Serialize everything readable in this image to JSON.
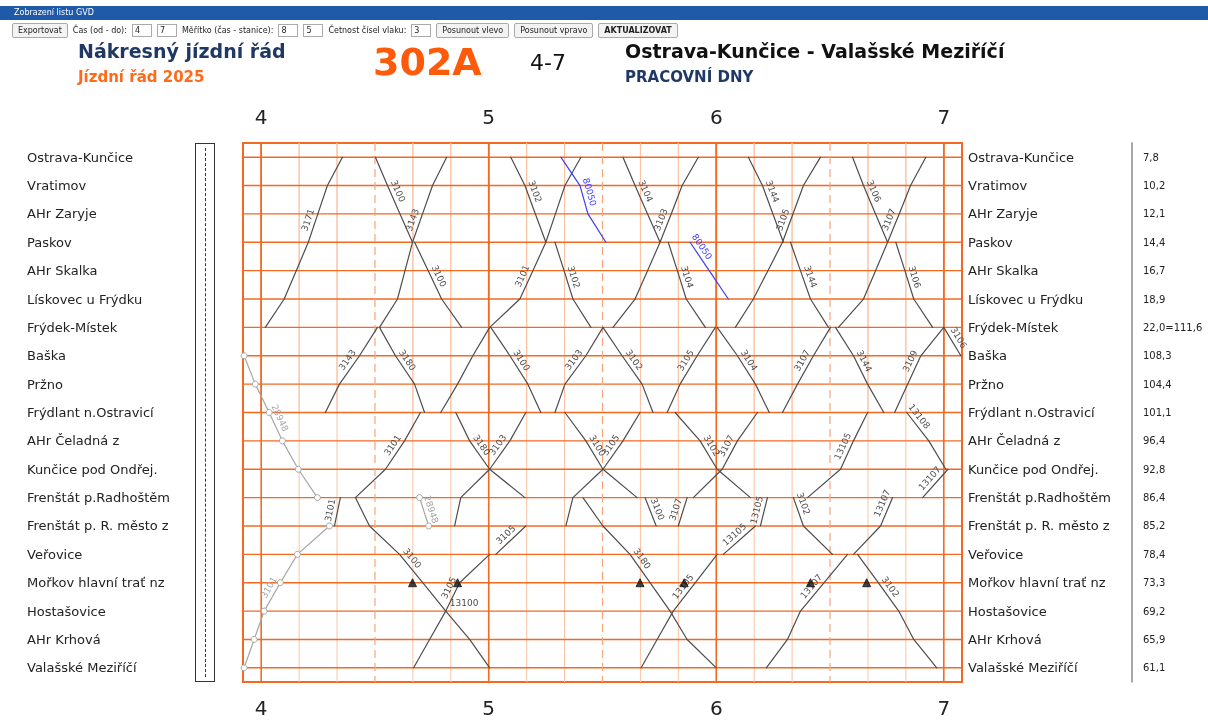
{
  "chart_data": {
    "type": "line",
    "orientation": "horizontal",
    "title": "Nákresný jízdní řád",
    "subtitle": "Jízdní řád 2025",
    "annotations": [
      "Zobrazení listu GVD",
      "Exportovat",
      "Čas (od - do):",
      "4",
      "7",
      "Měřítko (čas - stanice):",
      "8",
      "5",
      "Četnost čísel vlaku:",
      "3",
      "Posunout vlevo",
      "Posunout vpravo",
      "AKTUALIZOVAT",
      "302A",
      "4-7",
      "Ostrava-Kunčice - Valašské Meziříčí",
      "PRACOVNÍ DNY",
      {
        "text": "13100",
        "x": 4.811,
        "y": "Hostašovice"
      }
    ],
    "categories": [
      "Ostrava-Kunčice",
      "Vratimov",
      "AHr Zaryje",
      "Paskov",
      "AHr Skalka",
      "Lískovec u Frýdku",
      "Frýdek-Místek",
      "Baška",
      "Pržno",
      "Frýdlant n.Ostravicí",
      "AHr Čeladná z",
      "Kunčice pod Ondřej.",
      "Frenštát p.Radhoštěm",
      "Frenštát p. R. město z",
      "Veřovice",
      "Mořkov hlavní trať nz",
      "Hostašovice",
      "AHr Krhová",
      "Valašské Meziříčí"
    ],
    "y2_categories": [
      "7,8",
      "10,2",
      "12,1",
      "14,4",
      "16,7",
      "18,9",
      "22,0=111,6",
      "108,3",
      "104,4",
      "101,1",
      "96,4",
      "92,8",
      "86,4",
      "85,2",
      "78,4",
      "73,3",
      "69,2",
      "65,9",
      "61,1"
    ],
    "xlim": [
      3.92,
      7.08
    ],
    "xticks": [
      4,
      {
        "value": 4.1667,
        "label": null
      },
      {
        "value": 4.3333,
        "label": null
      },
      {
        "value": 4.6667,
        "label": null
      },
      {
        "value": 4.8333,
        "label": null
      },
      5,
      {
        "value": 5.1667,
        "label": null
      },
      {
        "value": 5.3333,
        "label": null
      },
      {
        "value": 5.6667,
        "label": null
      },
      {
        "value": 5.8333,
        "label": null
      },
      6,
      {
        "value": 6.1667,
        "label": null
      },
      {
        "value": 6.3333,
        "label": null
      },
      {
        "value": 6.6667,
        "label": null
      },
      {
        "value": 6.8333,
        "label": null
      },
      7
    ],
    "x2lim": [
      3.92,
      7.08
    ],
    "x2ticks": [
      4,
      {
        "value": 4.1667,
        "label": null
      },
      {
        "value": 4.3333,
        "label": null
      },
      {
        "value": 4.6667,
        "label": null
      },
      {
        "value": 4.8333,
        "label": null
      },
      5,
      {
        "value": 5.1667,
        "label": null
      },
      {
        "value": 5.3333,
        "label": null
      },
      {
        "value": 5.6667,
        "label": null
      },
      {
        "value": 5.8333,
        "label": null
      },
      6,
      {
        "value": 6.1667,
        "label": null
      },
      {
        "value": 6.3333,
        "label": null
      },
      {
        "value": 6.6667,
        "label": null
      },
      {
        "value": 6.8333,
        "label": null
      },
      7
    ],
    "ref_lines": [
      {
        "axis": "x",
        "value": 4.5,
        "color": "#f7a57a",
        "line_style": "dashed"
      },
      {
        "axis": "x",
        "value": 5.5,
        "color": "#f7a57a",
        "line_style": "dashed"
      },
      {
        "axis": "x",
        "value": 6.5,
        "color": "#f7a57a",
        "line_style": "dashed"
      }
    ],
    "grid": true,
    "legend": false,
    "marker": "none",
    "line_style": "solid",
    "series": [
      {
        "name": "3171",
        "color": "#4d4d4d",
        "values": [
          4.357,
          4.291,
          4.249,
          4.207,
          4.154,
          4.101,
          4.018,
          null,
          null,
          null,
          null,
          null,
          null,
          null,
          null,
          null,
          null,
          null,
          null
        ]
      },
      {
        "name": "3100",
        "color": "#4d4d4d",
        "values": [
          4.502,
          4.555,
          4.61,
          4.665,
          null,
          null,
          null,
          null,
          null,
          null,
          null,
          null,
          null,
          null,
          null,
          null,
          null,
          null,
          null
        ]
      },
      {
        "name": "3100",
        "color": "#4d4d4d",
        "values": [
          null,
          null,
          null,
          4.674,
          4.734,
          4.793,
          4.881,
          null,
          null,
          null,
          null,
          null,
          null,
          null,
          null,
          null,
          null,
          null,
          null
        ]
      },
      {
        "name": "3100",
        "color": "#4d4d4d",
        "values": [
          null,
          null,
          null,
          null,
          null,
          null,
          5.009,
          5.093,
          5.172,
          5.229,
          null,
          null,
          null,
          null,
          null,
          null,
          null,
          null,
          null
        ]
      },
      {
        "name": "3100",
        "color": "#4d4d4d",
        "values": [
          null,
          null,
          null,
          null,
          null,
          null,
          null,
          null,
          null,
          5.335,
          5.427,
          5.502,
          5.652,
          null,
          null,
          null,
          null,
          null,
          null
        ]
      },
      {
        "name": "3100",
        "color": "#4d4d4d",
        "values": [
          null,
          null,
          null,
          null,
          null,
          null,
          null,
          null,
          null,
          null,
          null,
          null,
          5.687,
          5.736,
          null,
          null,
          null,
          null,
          null
        ]
      },
      {
        "name": "3102",
        "color": "#4d4d4d",
        "values": [
          5.097,
          5.159,
          5.205,
          5.251,
          null,
          null,
          null,
          null,
          null,
          null,
          null,
          null,
          null,
          null,
          null,
          null,
          null,
          null,
          null
        ]
      },
      {
        "name": "3102",
        "color": "#4d4d4d",
        "values": [
          null,
          null,
          null,
          5.291,
          5.331,
          5.37,
          5.449,
          null,
          null,
          null,
          null,
          null,
          null,
          null,
          null,
          null,
          null,
          null,
          null
        ]
      },
      {
        "name": "3102",
        "color": "#4d4d4d",
        "values": [
          null,
          null,
          null,
          null,
          null,
          null,
          5.502,
          5.586,
          5.674,
          5.722,
          null,
          null,
          null,
          null,
          null,
          null,
          null,
          null,
          null
        ]
      },
      {
        "name": "3102",
        "color": "#4d4d4d",
        "values": [
          null,
          null,
          null,
          null,
          null,
          null,
          null,
          null,
          null,
          5.819,
          5.929,
          6.004,
          6.15,
          null,
          null,
          null,
          null,
          null,
          null
        ]
      },
      {
        "name": "3102",
        "color": "#4d4d4d",
        "values": [
          null,
          null,
          null,
          null,
          null,
          null,
          null,
          null,
          null,
          null,
          null,
          null,
          6.339,
          6.383,
          6.511,
          null,
          null,
          null,
          null
        ]
      },
      {
        "name": "3102",
        "color": "#4d4d4d",
        "values": [
          null,
          null,
          null,
          null,
          null,
          null,
          null,
          null,
          null,
          null,
          null,
          null,
          null,
          null,
          6.621,
          6.712,
          6.802,
          6.868,
          6.969
        ]
      },
      {
        "name": "3104",
        "color": "#4d4d4d",
        "values": [
          5.59,
          5.643,
          5.698,
          5.753,
          null,
          null,
          null,
          null,
          null,
          null,
          null,
          null,
          null,
          null,
          null,
          null,
          null,
          null,
          null
        ]
      },
      {
        "name": "3104",
        "color": "#4d4d4d",
        "values": [
          null,
          null,
          null,
          5.789,
          5.829,
          5.868,
          5.952,
          null,
          null,
          null,
          null,
          null,
          null,
          null,
          null,
          null,
          null,
          null,
          null
        ]
      },
      {
        "name": "3104",
        "color": "#4d4d4d",
        "values": [
          null,
          null,
          null,
          null,
          null,
          null,
          6.004,
          6.093,
          6.172,
          6.233,
          null,
          null,
          null,
          null,
          null,
          null,
          null,
          null,
          null
        ]
      },
      {
        "name": "3144",
        "color": "#4d4d4d",
        "values": [
          6.141,
          6.203,
          6.249,
          6.295,
          null,
          null,
          null,
          null,
          null,
          null,
          null,
          null,
          null,
          null,
          null,
          null,
          null,
          null,
          null
        ]
      },
      {
        "name": "3144",
        "color": "#4d4d4d",
        "values": [
          null,
          null,
          null,
          6.326,
          6.37,
          6.414,
          6.493,
          null,
          null,
          null,
          null,
          null,
          null,
          null,
          null,
          null,
          null,
          null,
          null
        ]
      },
      {
        "name": "3144",
        "color": "#4d4d4d",
        "values": [
          null,
          null,
          null,
          null,
          null,
          null,
          6.524,
          6.603,
          6.665,
          6.736,
          null,
          null,
          null,
          null,
          null,
          null,
          null,
          null,
          null
        ]
      },
      {
        "name": "3106",
        "color": "#4d4d4d",
        "values": [
          6.599,
          6.647,
          6.7,
          6.753,
          null,
          null,
          null,
          null,
          null,
          null,
          null,
          null,
          null,
          null,
          null,
          null,
          null,
          null,
          null
        ]
      },
      {
        "name": "3106",
        "color": "#4d4d4d",
        "values": [
          null,
          null,
          null,
          6.789,
          6.829,
          6.868,
          6.951,
          null,
          null,
          null,
          null,
          null,
          null,
          null,
          null,
          null,
          null,
          null,
          null
        ]
      },
      {
        "name": "3106",
        "color": "#4d4d4d",
        "values": [
          null,
          null,
          null,
          null,
          null,
          null,
          7.0,
          7.075,
          null,
          null,
          null,
          null,
          null,
          null,
          null,
          null,
          null,
          null,
          null
        ]
      },
      {
        "name": "80050",
        "color": "#3c3cff",
        "values": [
          5.317,
          5.401,
          5.436,
          5.515,
          null,
          null,
          null,
          null,
          null,
          null,
          null,
          null,
          null,
          null,
          null,
          null,
          null,
          null,
          null
        ]
      },
      {
        "name": "80050",
        "color": "#3c3cff",
        "values": [
          null,
          null,
          null,
          5.885,
          5.969,
          6.053,
          null,
          null,
          null,
          null,
          null,
          null,
          null,
          null,
          null,
          null,
          null,
          null,
          null
        ]
      },
      {
        "name": "3143",
        "color": "#4d4d4d",
        "values": [
          null,
          null,
          null,
          null,
          null,
          null,
          4.511,
          4.432,
          4.344,
          4.282,
          null,
          null,
          null,
          null,
          null,
          null,
          null,
          null,
          null
        ]
      },
      {
        "name": "3143",
        "color": "#4d4d4d",
        "values": [
          4.815,
          4.753,
          4.709,
          4.665,
          4.632,
          4.599,
          4.52,
          null,
          null,
          null,
          null,
          null,
          null,
          null,
          null,
          null,
          null,
          null,
          null
        ]
      },
      {
        "name": "3101",
        "color": "#4d4d4d",
        "values": [
          null,
          null,
          null,
          null,
          null,
          null,
          null,
          null,
          null,
          null,
          null,
          null,
          4.348,
          4.322,
          null,
          null,
          null,
          null,
          null
        ]
      },
      {
        "name": "3101",
        "color": "#4d4d4d",
        "values": [
          null,
          null,
          null,
          null,
          null,
          null,
          null,
          null,
          null,
          4.7,
          4.63,
          4.546,
          4.414,
          null,
          null,
          null,
          null,
          null,
          null
        ]
      },
      {
        "name": "3101",
        "color": "#4d4d4d",
        "values": [
          5.405,
          5.335,
          5.293,
          5.251,
          5.194,
          5.137,
          5.004,
          4.93,
          4.863,
          4.789,
          null,
          null,
          null,
          null,
          null,
          null,
          null,
          null,
          null
        ]
      },
      {
        "name": "3180",
        "color": "#4d4d4d",
        "values": [
          null,
          null,
          null,
          null,
          null,
          null,
          4.52,
          4.59,
          4.674,
          4.718,
          null,
          null,
          null,
          null,
          null,
          null,
          null,
          null,
          null
        ]
      },
      {
        "name": "3180",
        "color": "#4d4d4d",
        "values": [
          null,
          null,
          null,
          null,
          null,
          null,
          null,
          null,
          null,
          4.855,
          4.916,
          5.004,
          5.159,
          null,
          null,
          null,
          null,
          null,
          null
        ]
      },
      {
        "name": "3180",
        "color": "#4d4d4d",
        "values": [
          null,
          null,
          null,
          null,
          null,
          null,
          null,
          null,
          null,
          null,
          null,
          null,
          5.414,
          5.502,
          5.621,
          5.709,
          5.797,
          5.872,
          6.0
        ]
      },
      {
        "name": "3100",
        "color": "#4d4d4d",
        "values": [
          null,
          null,
          null,
          null,
          null,
          null,
          null,
          null,
          null,
          null,
          null,
          null,
          4.414,
          4.476,
          4.608,
          4.71,
          4.811,
          4.916,
          5.004
        ]
      },
      {
        "name": "3103",
        "color": "#4d4d4d",
        "values": [
          null,
          null,
          null,
          null,
          null,
          null,
          null,
          null,
          null,
          5.163,
          5.093,
          5.004,
          4.877,
          4.85,
          null,
          null,
          null,
          null,
          null
        ]
      },
      {
        "name": "3103",
        "color": "#4d4d4d",
        "values": [
          null,
          null,
          null,
          null,
          null,
          null,
          5.502,
          5.427,
          5.335,
          5.291,
          null,
          null,
          null,
          null,
          null,
          null,
          null,
          null,
          null
        ]
      },
      {
        "name": "3103",
        "color": "#4d4d4d",
        "values": [
          5.921,
          5.85,
          5.802,
          5.753,
          5.698,
          5.643,
          5.546,
          null,
          null,
          null,
          null,
          null,
          null,
          null,
          null,
          null,
          null,
          null,
          null
        ]
      },
      {
        "name": "3105",
        "color": "#4d4d4d",
        "values": [
          null,
          null,
          null,
          null,
          null,
          null,
          null,
          null,
          null,
          null,
          null,
          null,
          null,
          null,
          5.004,
          4.872,
          4.811,
          4.74,
          4.67
        ]
      },
      {
        "name": "3105",
        "color": "#4d4d4d",
        "values": [
          null,
          null,
          null,
          null,
          null,
          null,
          null,
          null,
          null,
          null,
          null,
          null,
          null,
          5.163,
          5.031,
          null,
          null,
          null,
          null
        ]
      },
      {
        "name": "3105",
        "color": "#4d4d4d",
        "values": [
          null,
          null,
          null,
          null,
          null,
          null,
          null,
          null,
          null,
          5.665,
          5.59,
          5.502,
          5.37,
          5.339,
          null,
          null,
          null,
          null,
          null
        ]
      },
      {
        "name": "3105",
        "color": "#4d4d4d",
        "values": [
          null,
          null,
          null,
          null,
          null,
          null,
          5.996,
          5.916,
          5.841,
          5.784,
          null,
          null,
          null,
          null,
          null,
          null,
          null,
          null,
          null
        ]
      },
      {
        "name": "3105",
        "color": "#4d4d4d",
        "values": [
          6.458,
          6.383,
          6.337,
          6.291,
          6.227,
          6.163,
          6.084,
          null,
          null,
          null,
          null,
          null,
          null,
          null,
          null,
          null,
          null,
          null,
          null
        ]
      },
      {
        "name": "13105",
        "color": "#4d4d4d",
        "values": [
          null,
          null,
          null,
          null,
          null,
          null,
          null,
          null,
          null,
          null,
          null,
          null,
          null,
          null,
          6.004,
          5.908,
          5.811,
          5.74,
          5.67
        ]
      },
      {
        "name": "13105",
        "color": "#4d4d4d",
        "values": [
          null,
          null,
          null,
          null,
          null,
          null,
          null,
          null,
          null,
          null,
          null,
          null,
          null,
          6.172,
          6.031,
          null,
          null,
          null,
          null
        ]
      },
      {
        "name": "13105",
        "color": "#4d4d4d",
        "values": [
          null,
          null,
          null,
          null,
          null,
          null,
          null,
          null,
          null,
          null,
          null,
          null,
          6.225,
          6.194,
          null,
          null,
          null,
          null,
          null
        ]
      },
      {
        "name": "13105",
        "color": "#4d4d4d",
        "values": [
          null,
          null,
          null,
          null,
          null,
          null,
          null,
          null,
          null,
          6.665,
          6.603,
          6.546,
          6.401,
          null,
          null,
          null,
          null,
          null,
          null
        ]
      },
      {
        "name": "3107",
        "color": "#4d4d4d",
        "values": [
          null,
          null,
          null,
          null,
          null,
          null,
          null,
          null,
          null,
          null,
          null,
          null,
          5.872,
          5.833,
          null,
          null,
          null,
          null,
          null
        ]
      },
      {
        "name": "3107",
        "color": "#4d4d4d",
        "values": [
          null,
          null,
          null,
          null,
          null,
          null,
          null,
          null,
          null,
          6.181,
          6.093,
          6.026,
          5.899,
          null,
          null,
          null,
          null,
          null,
          null
        ]
      },
      {
        "name": "3107",
        "color": "#4d4d4d",
        "values": [
          null,
          null,
          null,
          null,
          null,
          null,
          6.502,
          6.427,
          6.357,
          6.291,
          null,
          null,
          null,
          null,
          null,
          null,
          null,
          null,
          null
        ]
      },
      {
        "name": "3107",
        "color": "#4d4d4d",
        "values": [
          6.921,
          6.854,
          6.804,
          6.753,
          6.7,
          6.647,
          6.537,
          null,
          null,
          null,
          null,
          null,
          null,
          null,
          null,
          null,
          null,
          null,
          null
        ]
      },
      {
        "name": "3109",
        "color": "#4d4d4d",
        "values": [
          null,
          null,
          null,
          null,
          null,
          null,
          7.0,
          6.899,
          6.841,
          6.784,
          null,
          null,
          null,
          null,
          null,
          null,
          null,
          null,
          null
        ]
      },
      {
        "name": "13108",
        "color": "#4d4d4d",
        "values": [
          null,
          null,
          null,
          null,
          null,
          null,
          null,
          null,
          null,
          6.837,
          6.934,
          7.009,
          null,
          null,
          null,
          null,
          null,
          null,
          null
        ]
      },
      {
        "name": "13107",
        "color": "#4d4d4d",
        "values": [
          null,
          null,
          null,
          null,
          null,
          null,
          null,
          null,
          null,
          null,
          null,
          null,
          null,
          null,
          6.577,
          6.474,
          6.37,
          6.313,
          6.22
        ]
      },
      {
        "name": "13107",
        "color": "#4d4d4d",
        "values": [
          null,
          null,
          null,
          null,
          null,
          null,
          null,
          null,
          null,
          null,
          null,
          null,
          6.775,
          6.722,
          6.603,
          null,
          null,
          null,
          null
        ]
      },
      {
        "name": "13107",
        "color": "#4d4d4d",
        "values": [
          null,
          null,
          null,
          null,
          null,
          null,
          null,
          null,
          null,
          null,
          null,
          7.018,
          6.907,
          null,
          null,
          null,
          null,
          null,
          null
        ]
      },
      {
        "name": "3101",
        "color": "#a6a6a6",
        "marker": "circle",
        "values": [
          null,
          null,
          null,
          null,
          null,
          null,
          null,
          null,
          null,
          null,
          null,
          null,
          null,
          4.3,
          4.159,
          4.084,
          4.013,
          3.969,
          3.925
        ]
      },
      {
        "name": "28948",
        "color": "#a6a6a6",
        "marker": "circle",
        "values": [
          null,
          null,
          null,
          null,
          null,
          null,
          null,
          3.925,
          3.974,
          4.035,
          4.093,
          4.163,
          4.247,
          null,
          null,
          null,
          null,
          null,
          null
        ]
      },
      {
        "name": "28948",
        "color": "#a6a6a6",
        "marker": "circle",
        "values": [
          null,
          null,
          null,
          null,
          null,
          null,
          null,
          null,
          null,
          null,
          null,
          null,
          4.696,
          4.736,
          null,
          null,
          null,
          null,
          null
        ]
      },
      {
        "type": "scatter",
        "color": "#111111",
        "marker": "triangle",
        "values": [
          null,
          null,
          null,
          null,
          null,
          null,
          null,
          null,
          null,
          null,
          null,
          null,
          null,
          null,
          null,
          4.665,
          null,
          null,
          null
        ]
      },
      {
        "type": "scatter",
        "color": "#111111",
        "marker": "triangle",
        "values": [
          null,
          null,
          null,
          null,
          null,
          null,
          null,
          null,
          null,
          null,
          null,
          null,
          null,
          null,
          null,
          4.863,
          null,
          null,
          null
        ]
      },
      {
        "type": "scatter",
        "color": "#111111",
        "marker": "triangle",
        "values": [
          null,
          null,
          null,
          null,
          null,
          null,
          null,
          null,
          null,
          null,
          null,
          null,
          null,
          null,
          null,
          5.665,
          null,
          null,
          null
        ]
      },
      {
        "type": "scatter",
        "color": "#111111",
        "marker": "triangle",
        "values": [
          null,
          null,
          null,
          null,
          null,
          null,
          null,
          null,
          null,
          null,
          null,
          null,
          null,
          null,
          null,
          5.859,
          null,
          null,
          null
        ]
      },
      {
        "type": "scatter",
        "color": "#111111",
        "marker": "triangle",
        "values": [
          null,
          null,
          null,
          null,
          null,
          null,
          null,
          null,
          null,
          null,
          null,
          null,
          null,
          null,
          null,
          6.414,
          null,
          null,
          null
        ]
      },
      {
        "type": "scatter",
        "color": "#111111",
        "marker": "triangle",
        "values": [
          null,
          null,
          null,
          null,
          null,
          null,
          null,
          null,
          null,
          null,
          null,
          null,
          null,
          null,
          null,
          6.661,
          null,
          null,
          null
        ]
      }
    ]
  }
}
